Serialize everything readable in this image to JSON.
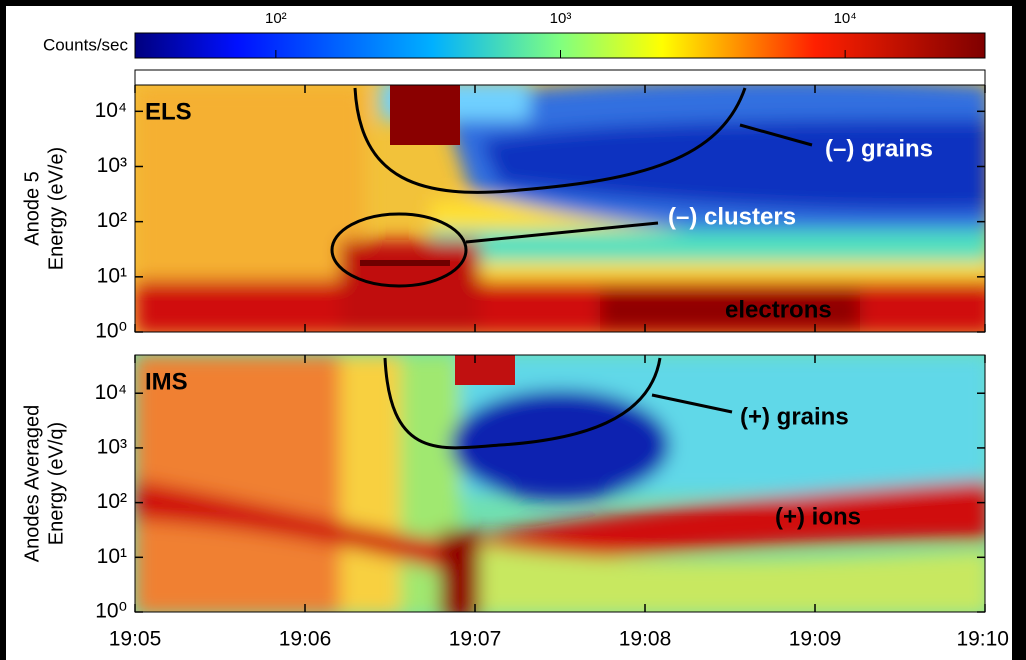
{
  "colorbar": {
    "label": "Counts/sec",
    "clim": [
      32,
      31000
    ],
    "log": true,
    "ticks": [
      {
        "value": 100,
        "label": "10²"
      },
      {
        "value": 1000,
        "label": "10³"
      },
      {
        "value": 10000,
        "label": "10⁴"
      }
    ]
  },
  "chart_data": [
    {
      "type": "spectrogram",
      "panel_label": "ELS",
      "y_label": [
        "Anode 5",
        "Energy (eV/e)"
      ],
      "log_y": true,
      "ylim": [
        1,
        30000
      ],
      "yticks": [
        {
          "value": 1,
          "label": "10⁰"
        },
        {
          "value": 10,
          "label": "10¹"
        },
        {
          "value": 100,
          "label": "10²"
        },
        {
          "value": 1000,
          "label": "10³"
        },
        {
          "value": 10000,
          "label": "10⁴"
        }
      ],
      "annotations": [
        "(–) grains",
        "(–) clusters",
        "electrons"
      ]
    },
    {
      "type": "spectrogram",
      "panel_label": "IMS",
      "y_label": [
        "Anodes Averaged",
        "Energy (eV/q)"
      ],
      "log_y": true,
      "ylim": [
        1,
        50000
      ],
      "yticks": [
        {
          "value": 1,
          "label": "10⁰"
        },
        {
          "value": 10,
          "label": "10¹"
        },
        {
          "value": 100,
          "label": "10²"
        },
        {
          "value": 1000,
          "label": "10³"
        },
        {
          "value": 10000,
          "label": "10⁴"
        }
      ],
      "xlim": [
        "19:05",
        "19:10"
      ],
      "xticks": [
        "19:05",
        "19:06",
        "19:07",
        "19:08",
        "19:09",
        "19:10"
      ],
      "annotations": [
        "(+) grains",
        "(+) ions"
      ]
    }
  ]
}
